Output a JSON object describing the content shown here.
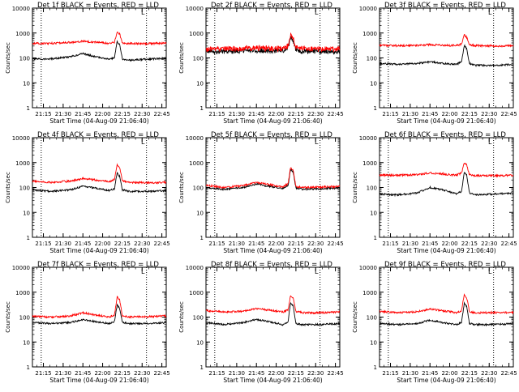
{
  "figure": {
    "xlabel": "Start Time (04-Aug-09 21:06:40)",
    "ylabel": "Counts/sec",
    "legend_text": "L"
  },
  "colors": {
    "events": "#000000",
    "lld": "#ff0000",
    "axes": "#000000"
  },
  "chart_data": [
    {
      "type": "line",
      "title": "Det 1f BLACK = Events, RED = LLD",
      "xlim": [
        "21:06:40",
        "22:48:20"
      ],
      "ylim": [
        1,
        10000
      ],
      "yscale": "log",
      "xticks": [
        "21:15",
        "21:30",
        "21:45",
        "22:00",
        "22:15",
        "22:30",
        "22:45"
      ],
      "yticks": [
        "1",
        "10",
        "100",
        "1000",
        "10000"
      ],
      "vlines": [
        "21:13:20",
        "22:33:20"
      ],
      "series": [
        {
          "name": "Events",
          "x": [
            "21:06:40",
            "21:20",
            "21:35",
            "21:45",
            "21:55",
            "22:05",
            "22:09",
            "22:11",
            "22:13",
            "22:15",
            "22:20",
            "22:35",
            "22:48"
          ],
          "y": [
            90,
            90,
            110,
            150,
            110,
            90,
            100,
            450,
            330,
            90,
            80,
            90,
            95
          ]
        },
        {
          "name": "LLD",
          "x": [
            "21:06:40",
            "21:20",
            "21:35",
            "21:45",
            "21:55",
            "22:05",
            "22:09",
            "22:11",
            "22:13",
            "22:15",
            "22:20",
            "22:35",
            "22:48"
          ],
          "y": [
            380,
            380,
            420,
            470,
            430,
            380,
            420,
            1100,
            900,
            390,
            380,
            380,
            390
          ]
        }
      ]
    },
    {
      "type": "line",
      "title": "Det 2f BLACK = Events, RED = LLD",
      "xlim": [
        "21:06:40",
        "22:48:20"
      ],
      "ylim": [
        1,
        10000
      ],
      "yscale": "log",
      "xticks": [
        "21:15",
        "21:30",
        "21:45",
        "22:00",
        "22:15",
        "22:30",
        "22:45"
      ],
      "yticks": [
        "1",
        "10",
        "100",
        "1000",
        "10000"
      ],
      "vlines": [
        "21:13:20",
        "22:33:20"
      ],
      "series": [
        {
          "name": "Events",
          "x": [
            "21:06:40",
            "21:20",
            "21:35",
            "21:45",
            "21:55",
            "22:05",
            "22:09",
            "22:11",
            "22:13",
            "22:15",
            "22:20",
            "22:35",
            "22:48"
          ],
          "y": [
            180,
            180,
            190,
            200,
            190,
            190,
            250,
            650,
            500,
            210,
            180,
            180,
            185
          ]
        },
        {
          "name": "LLD",
          "x": [
            "21:06:40",
            "21:20",
            "21:35",
            "21:45",
            "21:55",
            "22:05",
            "22:09",
            "22:11",
            "22:13",
            "22:15",
            "22:20",
            "22:35",
            "22:48"
          ],
          "y": [
            220,
            230,
            240,
            250,
            235,
            230,
            300,
            750,
            580,
            250,
            230,
            225,
            230
          ]
        }
      ]
    },
    {
      "type": "line",
      "title": "Det 3f BLACK = Events, RED = LLD",
      "xlim": [
        "21:06:40",
        "22:48:20"
      ],
      "ylim": [
        1,
        10000
      ],
      "yscale": "log",
      "xticks": [
        "21:15",
        "21:30",
        "21:45",
        "22:00",
        "22:15",
        "22:30",
        "22:45"
      ],
      "yticks": [
        "1",
        "10",
        "100",
        "1000",
        "10000"
      ],
      "vlines": [
        "21:13:20",
        "22:33:20"
      ],
      "series": [
        {
          "name": "Events",
          "x": [
            "21:06:40",
            "21:20",
            "21:35",
            "21:45",
            "21:55",
            "22:05",
            "22:09",
            "22:11",
            "22:13",
            "22:15",
            "22:20",
            "22:35",
            "22:48"
          ],
          "y": [
            60,
            55,
            60,
            70,
            60,
            55,
            70,
            320,
            230,
            60,
            50,
            50,
            55
          ]
        },
        {
          "name": "LLD",
          "x": [
            "21:06:40",
            "21:20",
            "21:35",
            "21:45",
            "21:55",
            "22:05",
            "22:09",
            "22:11",
            "22:13",
            "22:15",
            "22:20",
            "22:35",
            "22:48"
          ],
          "y": [
            320,
            310,
            320,
            340,
            320,
            310,
            360,
            850,
            650,
            330,
            310,
            300,
            310
          ]
        }
      ]
    },
    {
      "type": "line",
      "title": "Det 4f BLACK = Events, RED = LLD",
      "xlim": [
        "21:06:40",
        "22:48:20"
      ],
      "ylim": [
        1,
        10000
      ],
      "yscale": "log",
      "xticks": [
        "21:15",
        "21:30",
        "21:45",
        "22:00",
        "22:15",
        "22:30",
        "22:45"
      ],
      "yticks": [
        "1",
        "10",
        "100",
        "1000",
        "10000"
      ],
      "vlines": [
        "21:13:20",
        "22:33:20"
      ],
      "series": [
        {
          "name": "Events",
          "x": [
            "21:06:40",
            "21:20",
            "21:35",
            "21:45",
            "21:55",
            "22:05",
            "22:09",
            "22:11",
            "22:13",
            "22:15",
            "22:20",
            "22:35",
            "22:48"
          ],
          "y": [
            80,
            70,
            80,
            110,
            95,
            75,
            90,
            380,
            280,
            80,
            70,
            70,
            75
          ]
        },
        {
          "name": "LLD",
          "x": [
            "21:06:40",
            "21:20",
            "21:35",
            "21:45",
            "21:55",
            "22:05",
            "22:09",
            "22:11",
            "22:13",
            "22:15",
            "22:20",
            "22:35",
            "22:48"
          ],
          "y": [
            180,
            160,
            180,
            230,
            200,
            170,
            220,
            820,
            620,
            180,
            160,
            155,
            160
          ]
        }
      ]
    },
    {
      "type": "line",
      "title": "Det 5f BLACK = Events, RED = LLD",
      "xlim": [
        "21:06:40",
        "22:48:20"
      ],
      "ylim": [
        1,
        10000
      ],
      "yscale": "log",
      "xticks": [
        "21:15",
        "21:30",
        "21:45",
        "22:00",
        "22:15",
        "22:30",
        "22:45"
      ],
      "yticks": [
        "1",
        "10",
        "100",
        "1000",
        "10000"
      ],
      "vlines": [
        "21:13:20",
        "22:33:20"
      ],
      "series": [
        {
          "name": "Events",
          "x": [
            "21:06:40",
            "21:20",
            "21:35",
            "21:45",
            "21:55",
            "22:05",
            "22:09",
            "22:11",
            "22:13",
            "22:15",
            "22:20",
            "22:35",
            "22:48"
          ],
          "y": [
            100,
            85,
            100,
            140,
            110,
            90,
            120,
            550,
            420,
            95,
            85,
            90,
            95
          ]
        },
        {
          "name": "LLD",
          "x": [
            "21:06:40",
            "21:20",
            "21:35",
            "21:45",
            "21:55",
            "22:05",
            "22:09",
            "22:11",
            "22:13",
            "22:15",
            "22:20",
            "22:35",
            "22:48"
          ],
          "y": [
            125,
            100,
            120,
            160,
            130,
            105,
            140,
            650,
            480,
            110,
            100,
            105,
            110
          ]
        }
      ]
    },
    {
      "type": "line",
      "title": "Det 6f BLACK = Events, RED = LLD",
      "xlim": [
        "21:06:40",
        "22:48:20"
      ],
      "ylim": [
        1,
        10000
      ],
      "yscale": "log",
      "xticks": [
        "21:15",
        "21:30",
        "21:45",
        "22:00",
        "22:15",
        "22:30",
        "22:45"
      ],
      "yticks": [
        "1",
        "10",
        "100",
        "1000",
        "10000"
      ],
      "vlines": [
        "21:13:20",
        "22:33:20"
      ],
      "series": [
        {
          "name": "Events",
          "x": [
            "21:06:40",
            "21:20",
            "21:35",
            "21:45",
            "21:55",
            "22:05",
            "22:09",
            "22:11",
            "22:13",
            "22:15",
            "22:20",
            "22:35",
            "22:48"
          ],
          "y": [
            55,
            50,
            60,
            100,
            80,
            55,
            70,
            400,
            300,
            60,
            50,
            55,
            60
          ]
        },
        {
          "name": "LLD",
          "x": [
            "21:06:40",
            "21:20",
            "21:35",
            "21:45",
            "21:55",
            "22:05",
            "22:09",
            "22:11",
            "22:13",
            "22:15",
            "22:20",
            "22:35",
            "22:48"
          ],
          "y": [
            320,
            310,
            330,
            380,
            350,
            310,
            380,
            1000,
            800,
            320,
            300,
            300,
            310
          ]
        }
      ]
    },
    {
      "type": "line",
      "title": "Det 7f BLACK = Events, RED = LLD",
      "xlim": [
        "21:06:40",
        "22:48:20"
      ],
      "ylim": [
        1,
        10000
      ],
      "yscale": "log",
      "xticks": [
        "21:15",
        "21:30",
        "21:45",
        "22:00",
        "22:15",
        "22:30",
        "22:45"
      ],
      "yticks": [
        "1",
        "10",
        "100",
        "1000",
        "10000"
      ],
      "vlines": [
        "21:13:20",
        "22:33:20"
      ],
      "series": [
        {
          "name": "Events",
          "x": [
            "21:06:40",
            "21:20",
            "21:35",
            "21:45",
            "21:55",
            "22:05",
            "22:09",
            "22:11",
            "22:13",
            "22:15",
            "22:20",
            "22:35",
            "22:48"
          ],
          "y": [
            60,
            55,
            60,
            80,
            65,
            55,
            65,
            300,
            220,
            60,
            55,
            55,
            60
          ]
        },
        {
          "name": "LLD",
          "x": [
            "21:06:40",
            "21:20",
            "21:35",
            "21:45",
            "21:55",
            "22:05",
            "22:09",
            "22:11",
            "22:13",
            "22:15",
            "22:20",
            "22:35",
            "22:48"
          ],
          "y": [
            110,
            100,
            110,
            150,
            120,
            100,
            120,
            650,
            480,
            110,
            100,
            105,
            110
          ]
        }
      ]
    },
    {
      "type": "line",
      "title": "Det 8f BLACK = Events, RED = LLD",
      "xlim": [
        "21:06:40",
        "22:48:20"
      ],
      "ylim": [
        1,
        10000
      ],
      "yscale": "log",
      "xticks": [
        "21:15",
        "21:30",
        "21:45",
        "22:00",
        "22:15",
        "22:30",
        "22:45"
      ],
      "yticks": [
        "1",
        "10",
        "100",
        "1000",
        "10000"
      ],
      "vlines": [
        "21:13:20",
        "22:33:20"
      ],
      "series": [
        {
          "name": "Events",
          "x": [
            "21:06:40",
            "21:20",
            "21:35",
            "21:45",
            "21:55",
            "22:05",
            "22:09",
            "22:11",
            "22:13",
            "22:15",
            "22:20",
            "22:35",
            "22:48"
          ],
          "y": [
            60,
            50,
            60,
            80,
            65,
            50,
            65,
            380,
            280,
            55,
            50,
            50,
            55
          ]
        },
        {
          "name": "LLD",
          "x": [
            "21:06:40",
            "21:20",
            "21:35",
            "21:45",
            "21:55",
            "22:05",
            "22:09",
            "22:11",
            "22:13",
            "22:15",
            "22:20",
            "22:35",
            "22:48"
          ],
          "y": [
            180,
            160,
            170,
            220,
            190,
            160,
            190,
            750,
            560,
            170,
            150,
            150,
            160
          ]
        }
      ]
    },
    {
      "type": "line",
      "title": "Det 9f BLACK = Events, RED = LLD",
      "xlim": [
        "21:06:40",
        "22:48:20"
      ],
      "ylim": [
        1,
        10000
      ],
      "yscale": "log",
      "xticks": [
        "21:15",
        "21:30",
        "21:45",
        "22:00",
        "22:15",
        "22:30",
        "22:45"
      ],
      "yticks": [
        "1",
        "10",
        "100",
        "1000",
        "10000"
      ],
      "vlines": [
        "21:13:20",
        "22:33:20"
      ],
      "series": [
        {
          "name": "Events",
          "x": [
            "21:06:40",
            "21:20",
            "21:35",
            "21:45",
            "21:55",
            "22:05",
            "22:09",
            "22:11",
            "22:13",
            "22:15",
            "22:20",
            "22:35",
            "22:48"
          ],
          "y": [
            55,
            50,
            55,
            75,
            60,
            50,
            60,
            350,
            260,
            55,
            50,
            50,
            55
          ]
        },
        {
          "name": "LLD",
          "x": [
            "21:06:40",
            "21:20",
            "21:35",
            "21:45",
            "21:55",
            "22:05",
            "22:09",
            "22:11",
            "22:13",
            "22:15",
            "22:20",
            "22:35",
            "22:48"
          ],
          "y": [
            170,
            150,
            165,
            210,
            180,
            150,
            180,
            780,
            580,
            165,
            150,
            150,
            155
          ]
        }
      ]
    }
  ]
}
